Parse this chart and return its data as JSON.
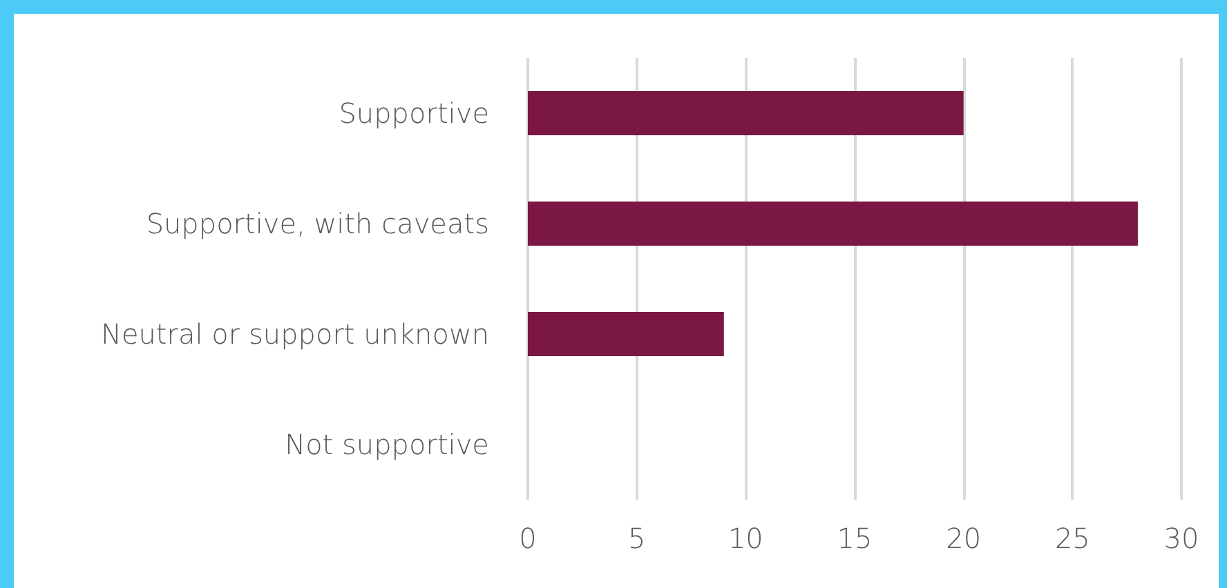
{
  "chart_data": {
    "type": "bar",
    "orientation": "horizontal",
    "categories": [
      "Supportive",
      "Supportive, with caveats",
      "Neutral or support unknown",
      "Not supportive"
    ],
    "values": [
      20,
      28,
      9,
      0
    ],
    "color": "#7b1743",
    "xlim": [
      0,
      30
    ],
    "xticks": [
      0,
      5,
      10,
      15,
      20,
      25,
      30
    ],
    "grid": "x"
  }
}
